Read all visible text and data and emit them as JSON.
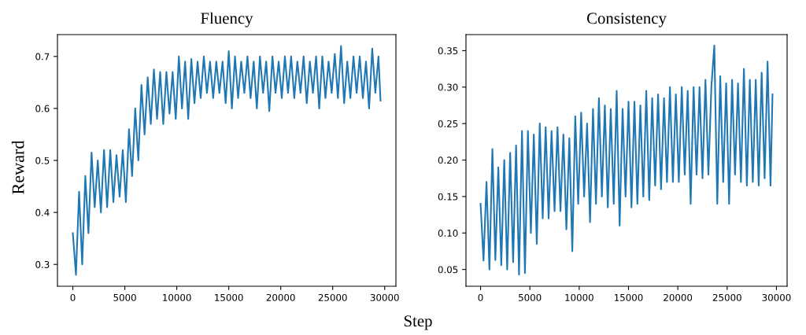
{
  "chart_data": [
    {
      "type": "line",
      "title": "Fluency",
      "ylabel": "Reward",
      "xlabel": "Step",
      "color": "#1f77b4",
      "xlim": [
        -1480,
        31080
      ],
      "ylim": [
        0.258,
        0.742
      ],
      "xticks": [
        0,
        5000,
        10000,
        15000,
        20000,
        25000,
        30000
      ],
      "yticks": [
        0.3,
        0.4,
        0.5,
        0.6,
        0.7
      ],
      "x": [
        0,
        300,
        600,
        900,
        1200,
        1500,
        1800,
        2100,
        2400,
        2700,
        3000,
        3300,
        3600,
        3900,
        4200,
        4500,
        4800,
        5100,
        5400,
        5700,
        6000,
        6300,
        6600,
        6900,
        7200,
        7500,
        7800,
        8100,
        8400,
        8700,
        9000,
        9300,
        9600,
        9900,
        10200,
        10500,
        10800,
        11100,
        11400,
        11700,
        12000,
        12300,
        12600,
        12900,
        13200,
        13500,
        13800,
        14100,
        14400,
        14700,
        15000,
        15300,
        15600,
        15900,
        16200,
        16500,
        16800,
        17100,
        17400,
        17700,
        18000,
        18300,
        18600,
        18900,
        19200,
        19500,
        19800,
        20100,
        20400,
        20700,
        21000,
        21300,
        21600,
        21900,
        22200,
        22500,
        22800,
        23100,
        23400,
        23700,
        24000,
        24300,
        24600,
        24900,
        25200,
        25500,
        25800,
        26100,
        26400,
        26700,
        27000,
        27300,
        27600,
        27900,
        28200,
        28500,
        28800,
        29100,
        29400,
        29600
      ],
      "values": [
        0.36,
        0.28,
        0.44,
        0.3,
        0.47,
        0.36,
        0.515,
        0.41,
        0.5,
        0.4,
        0.52,
        0.41,
        0.52,
        0.42,
        0.51,
        0.43,
        0.52,
        0.42,
        0.56,
        0.47,
        0.6,
        0.5,
        0.645,
        0.55,
        0.66,
        0.57,
        0.675,
        0.58,
        0.67,
        0.57,
        0.67,
        0.59,
        0.67,
        0.58,
        0.7,
        0.6,
        0.69,
        0.58,
        0.695,
        0.61,
        0.69,
        0.62,
        0.7,
        0.63,
        0.69,
        0.62,
        0.69,
        0.63,
        0.69,
        0.61,
        0.71,
        0.6,
        0.7,
        0.62,
        0.69,
        0.63,
        0.7,
        0.62,
        0.69,
        0.6,
        0.7,
        0.63,
        0.69,
        0.595,
        0.7,
        0.63,
        0.69,
        0.62,
        0.7,
        0.63,
        0.7,
        0.62,
        0.69,
        0.63,
        0.7,
        0.61,
        0.69,
        0.63,
        0.7,
        0.6,
        0.7,
        0.62,
        0.69,
        0.63,
        0.705,
        0.62,
        0.72,
        0.61,
        0.69,
        0.62,
        0.7,
        0.63,
        0.7,
        0.62,
        0.69,
        0.6,
        0.715,
        0.63,
        0.7,
        0.615
      ]
    },
    {
      "type": "line",
      "title": "Consistency",
      "color": "#1f77b4",
      "xlim": [
        -1480,
        31080
      ],
      "ylim": [
        0.027,
        0.372
      ],
      "xticks": [
        0,
        5000,
        10000,
        15000,
        20000,
        25000,
        30000
      ],
      "yticks": [
        0.05,
        {
          "value": 0.1,
          "label": "0.10"
        },
        0.15,
        {
          "value": 0.2,
          "label": "0.20"
        },
        0.25,
        {
          "value": 0.3,
          "label": "0.30"
        },
        0.35
      ],
      "x": [
        0,
        300,
        600,
        900,
        1200,
        1500,
        1800,
        2100,
        2400,
        2700,
        3000,
        3300,
        3600,
        3900,
        4200,
        4500,
        4800,
        5100,
        5400,
        5700,
        6000,
        6300,
        6600,
        6900,
        7200,
        7500,
        7800,
        8100,
        8400,
        8700,
        9000,
        9300,
        9600,
        9900,
        10200,
        10500,
        10800,
        11100,
        11400,
        11700,
        12000,
        12300,
        12600,
        12900,
        13200,
        13500,
        13800,
        14100,
        14400,
        14700,
        15000,
        15300,
        15600,
        15900,
        16200,
        16500,
        16800,
        17100,
        17400,
        17700,
        18000,
        18300,
        18600,
        18900,
        19200,
        19500,
        19800,
        20100,
        20400,
        20700,
        21000,
        21300,
        21600,
        21900,
        22200,
        22500,
        22800,
        23100,
        23400,
        23700,
        24000,
        24300,
        24600,
        24900,
        25200,
        25500,
        25800,
        26100,
        26400,
        26700,
        27000,
        27300,
        27600,
        27900,
        28200,
        28500,
        28800,
        29100,
        29400,
        29600
      ],
      "values": [
        0.14,
        0.062,
        0.17,
        0.05,
        0.215,
        0.063,
        0.19,
        0.056,
        0.2,
        0.05,
        0.21,
        0.06,
        0.22,
        0.043,
        0.24,
        0.045,
        0.24,
        0.1,
        0.235,
        0.085,
        0.25,
        0.12,
        0.245,
        0.12,
        0.24,
        0.13,
        0.245,
        0.13,
        0.235,
        0.105,
        0.23,
        0.075,
        0.26,
        0.14,
        0.265,
        0.15,
        0.25,
        0.115,
        0.27,
        0.14,
        0.285,
        0.15,
        0.275,
        0.135,
        0.27,
        0.14,
        0.295,
        0.11,
        0.27,
        0.15,
        0.28,
        0.135,
        0.28,
        0.14,
        0.275,
        0.15,
        0.295,
        0.145,
        0.285,
        0.165,
        0.29,
        0.16,
        0.285,
        0.17,
        0.3,
        0.17,
        0.29,
        0.17,
        0.3,
        0.18,
        0.295,
        0.14,
        0.3,
        0.18,
        0.3,
        0.175,
        0.31,
        0.18,
        0.3,
        0.357,
        0.14,
        0.315,
        0.17,
        0.305,
        0.14,
        0.31,
        0.18,
        0.305,
        0.17,
        0.325,
        0.165,
        0.31,
        0.17,
        0.31,
        0.165,
        0.32,
        0.175,
        0.335,
        0.165,
        0.29
      ]
    }
  ]
}
